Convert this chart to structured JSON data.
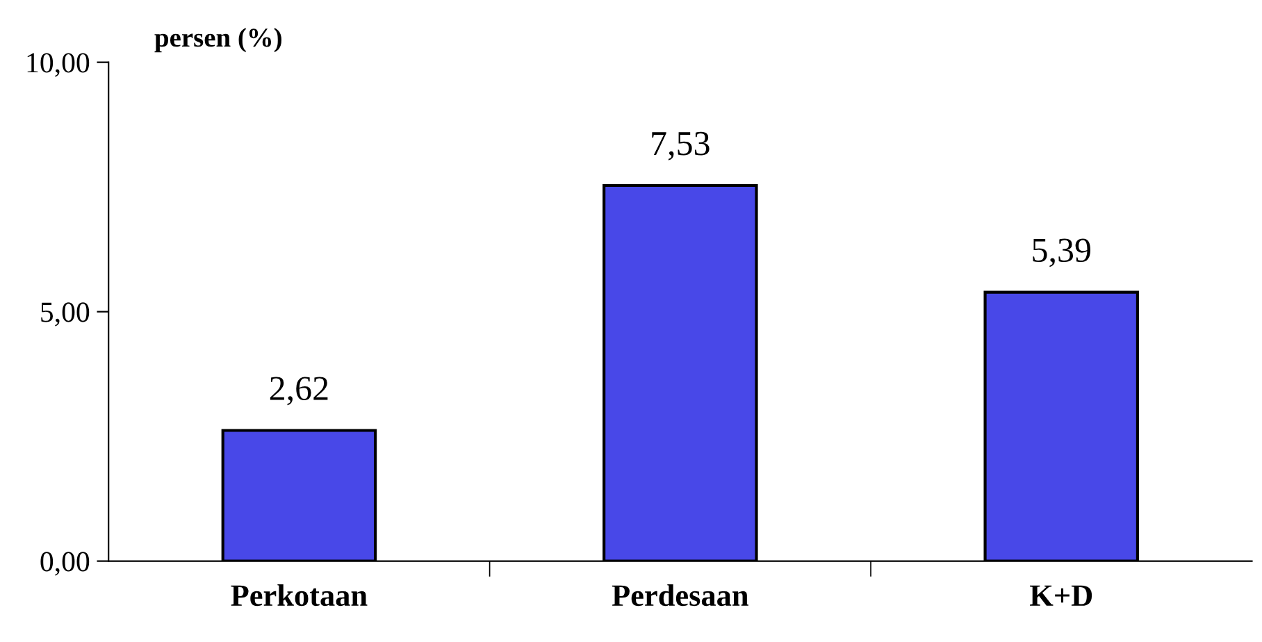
{
  "chart_data": {
    "type": "bar",
    "ylabel": "persen (%)",
    "categories": [
      "Perkotaan",
      "Perdesaan",
      "K+D"
    ],
    "values": [
      2.62,
      7.53,
      5.39
    ],
    "color": "#4848e8",
    "value_labels": [
      "2,62",
      "7,53",
      "5,39"
    ],
    "ylim": [
      0,
      10
    ],
    "yticks": [
      {
        "value": 0,
        "label": "0,00"
      },
      {
        "value": 5,
        "label": "5,00"
      },
      {
        "value": 10,
        "label": "10,00"
      }
    ],
    "grid": false,
    "legend": false
  }
}
